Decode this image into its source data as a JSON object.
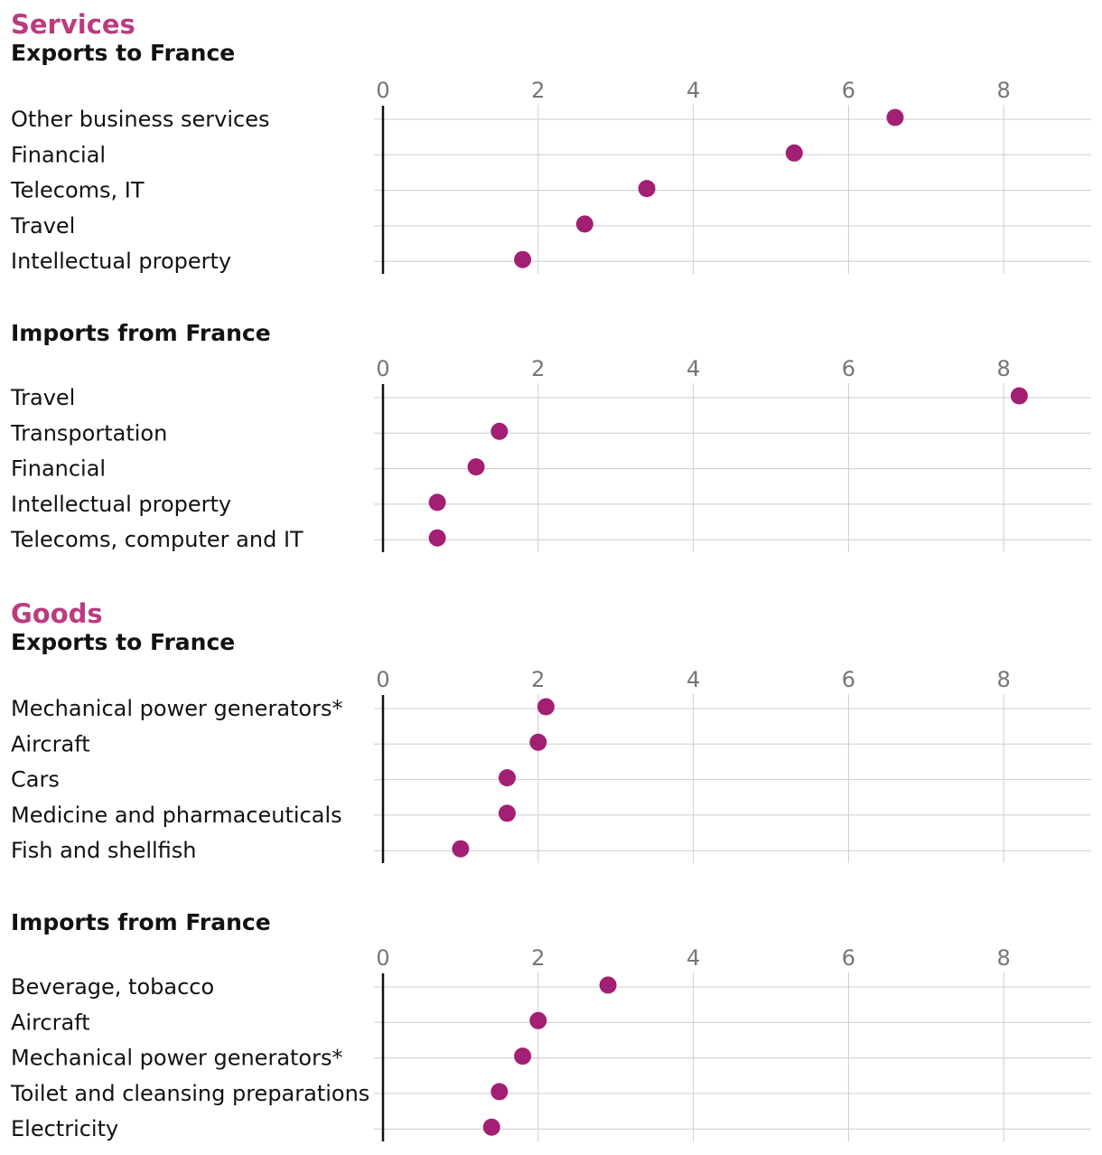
{
  "colors": {
    "accent": "#bb3b80",
    "dot": "#a21f73",
    "text": "#121212",
    "tick": "#767676",
    "grid": "#cccccc"
  },
  "chart_data": [
    {
      "type": "scatter",
      "section": "Services",
      "title": "Exports to France",
      "categories": [
        "Other business services",
        "Financial",
        "Telecoms, IT",
        "Travel",
        "Intellectual property"
      ],
      "values": [
        6.6,
        5.3,
        3.4,
        2.6,
        1.8
      ],
      "xticks": [
        0,
        2,
        4,
        6,
        8
      ],
      "xlim": [
        0,
        9.1
      ],
      "grid": true
    },
    {
      "type": "scatter",
      "section": "",
      "title": "Imports from France",
      "categories": [
        "Travel",
        "Transportation",
        "Financial",
        "Intellectual property",
        "Telecoms, computer and IT"
      ],
      "values": [
        8.2,
        1.5,
        1.2,
        0.7,
        0.7
      ],
      "xticks": [
        0,
        2,
        4,
        6,
        8
      ],
      "xlim": [
        0,
        9.1
      ],
      "grid": true
    },
    {
      "type": "scatter",
      "section": "Goods",
      "title": "Exports to France",
      "categories": [
        "Mechanical power generators*",
        "Aircraft",
        "Cars",
        "Medicine and pharmaceuticals",
        "Fish and shellfish"
      ],
      "values": [
        2.1,
        2.0,
        1.6,
        1.6,
        1.0
      ],
      "xticks": [
        0,
        2,
        4,
        6,
        8
      ],
      "xlim": [
        0,
        9.1
      ],
      "grid": true
    },
    {
      "type": "scatter",
      "section": "",
      "title": "Imports from France",
      "categories": [
        "Beverage, tobacco",
        "Aircraft",
        "Mechanical power generators*",
        "Toilet and cleansing preparations",
        "Electricity"
      ],
      "values": [
        2.9,
        2.0,
        1.8,
        1.5,
        1.4
      ],
      "xticks": [
        0,
        2,
        4,
        6,
        8
      ],
      "xlim": [
        0,
        9.1
      ],
      "grid": true
    }
  ]
}
